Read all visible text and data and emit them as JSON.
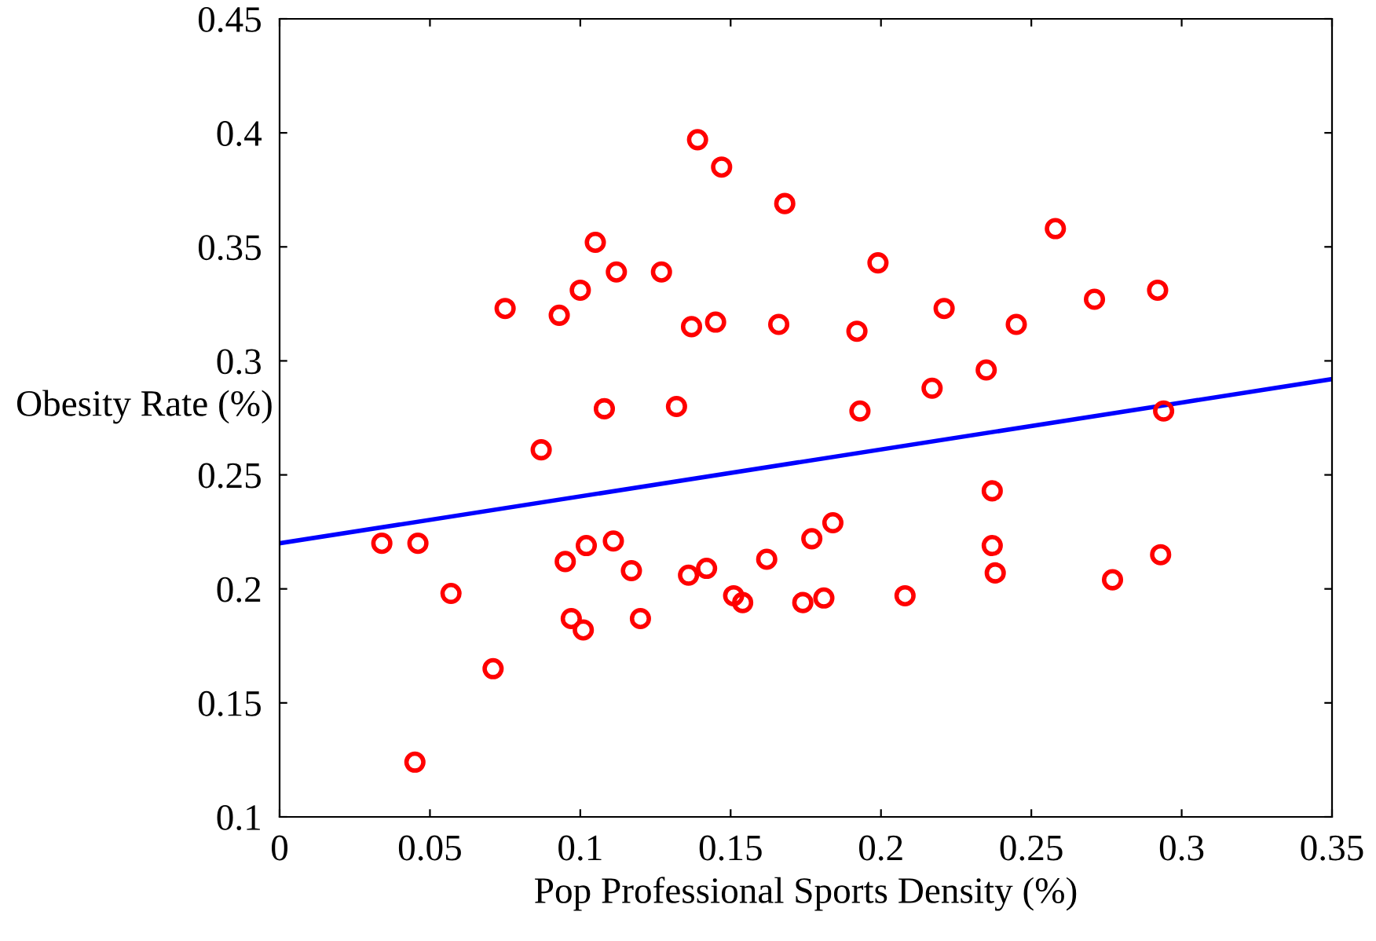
{
  "chart_data": {
    "type": "scatter",
    "xlabel": "Pop Professional Sports Density (%)",
    "ylabel": "Obesity Rate (%)",
    "xlim": [
      0,
      0.35
    ],
    "xticks": [
      0,
      0.05,
      0.1,
      0.15,
      0.2,
      0.25,
      0.3,
      0.35
    ],
    "ylim": [
      0.1,
      0.45
    ],
    "yticks": [
      0.1,
      0.15,
      0.2,
      0.25,
      0.3,
      0.35,
      0.4,
      0.45
    ],
    "grid": false,
    "legend": false,
    "series": [
      {
        "color": "#ff0000",
        "marker": "circle",
        "x": [
          0.034,
          0.046,
          0.057,
          0.071,
          0.045,
          0.075,
          0.087,
          0.093,
          0.1,
          0.105,
          0.095,
          0.097,
          0.101,
          0.102,
          0.111,
          0.112,
          0.108,
          0.117,
          0.12,
          0.127,
          0.132,
          0.136,
          0.137,
          0.139,
          0.142,
          0.145,
          0.147,
          0.151,
          0.154,
          0.162,
          0.166,
          0.168,
          0.174,
          0.177,
          0.181,
          0.184,
          0.192,
          0.193,
          0.199,
          0.208,
          0.217,
          0.221,
          0.235,
          0.237,
          0.237,
          0.238,
          0.245,
          0.258,
          0.271,
          0.277,
          0.292,
          0.293,
          0.294
        ],
        "values": [
          0.22,
          0.22,
          0.198,
          0.165,
          0.124,
          0.323,
          0.261,
          0.32,
          0.331,
          0.352,
          0.212,
          0.187,
          0.182,
          0.219,
          0.221,
          0.339,
          0.279,
          0.208,
          0.187,
          0.339,
          0.28,
          0.206,
          0.315,
          0.397,
          0.209,
          0.317,
          0.385,
          0.197,
          0.194,
          0.213,
          0.316,
          0.369,
          0.194,
          0.222,
          0.196,
          0.229,
          0.313,
          0.278,
          0.343,
          0.197,
          0.288,
          0.323,
          0.296,
          0.243,
          0.219,
          0.207,
          0.316,
          0.358,
          0.327,
          0.204,
          0.331,
          0.215,
          0.278
        ]
      },
      {
        "type": "line",
        "color": "#0000ff",
        "line_style": "solid",
        "x": [
          0,
          0.35
        ],
        "values": [
          0.22,
          0.292
        ]
      }
    ]
  }
}
